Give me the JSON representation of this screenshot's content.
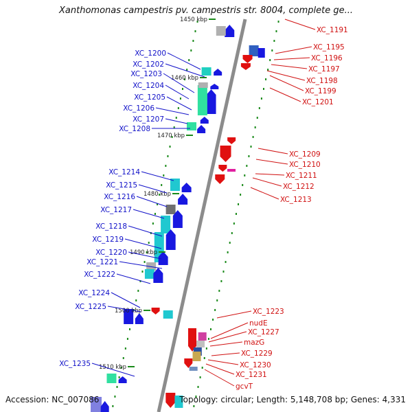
{
  "title": "Xanthomonas campestris pv. campestris str. 8004, complete ge...",
  "accession": "Accession: NC_007086",
  "topology": "Topology: circular; Length: 5,148,708 bp; Genes: 4,331",
  "colors": {
    "backbone": "#8c8c8c",
    "forward_arrow": "#1818e0",
    "reverse_arrow": "#e01010",
    "forward_label": "#1010c8",
    "reverse_label": "#d01010",
    "tick": "#1a8a1a"
  },
  "scale_labels": [
    "1450 kbp",
    "1460 kbp",
    "1470 kbp",
    "1480 kbp",
    "1490 kbp",
    "1500 kbp",
    "1510 kbp"
  ],
  "forward_genes": [
    "XC_1200",
    "XC_1202",
    "XC_1203",
    "XC_1204",
    "XC_1205",
    "XC_1206",
    "XC_1207",
    "XC_1208",
    "XC_1214",
    "XC_1215",
    "XC_1216",
    "XC_1217",
    "XC_1218",
    "XC_1219",
    "XC_1220",
    "XC_1221",
    "XC_1222",
    "XC_1224",
    "XC_1225",
    "XC_1235"
  ],
  "reverse_genes": [
    "XC_1191",
    "XC_1195",
    "XC_1196",
    "XC_1197",
    "XC_1198",
    "XC_1199",
    "XC_1201",
    "XC_1209",
    "XC_1210",
    "XC_1211",
    "XC_1212",
    "XC_1213",
    "XC_1223",
    "nudE",
    "XC_1227",
    "mazG",
    "XC_1229",
    "XC_1230",
    "XC_1231",
    "gcvT"
  ]
}
